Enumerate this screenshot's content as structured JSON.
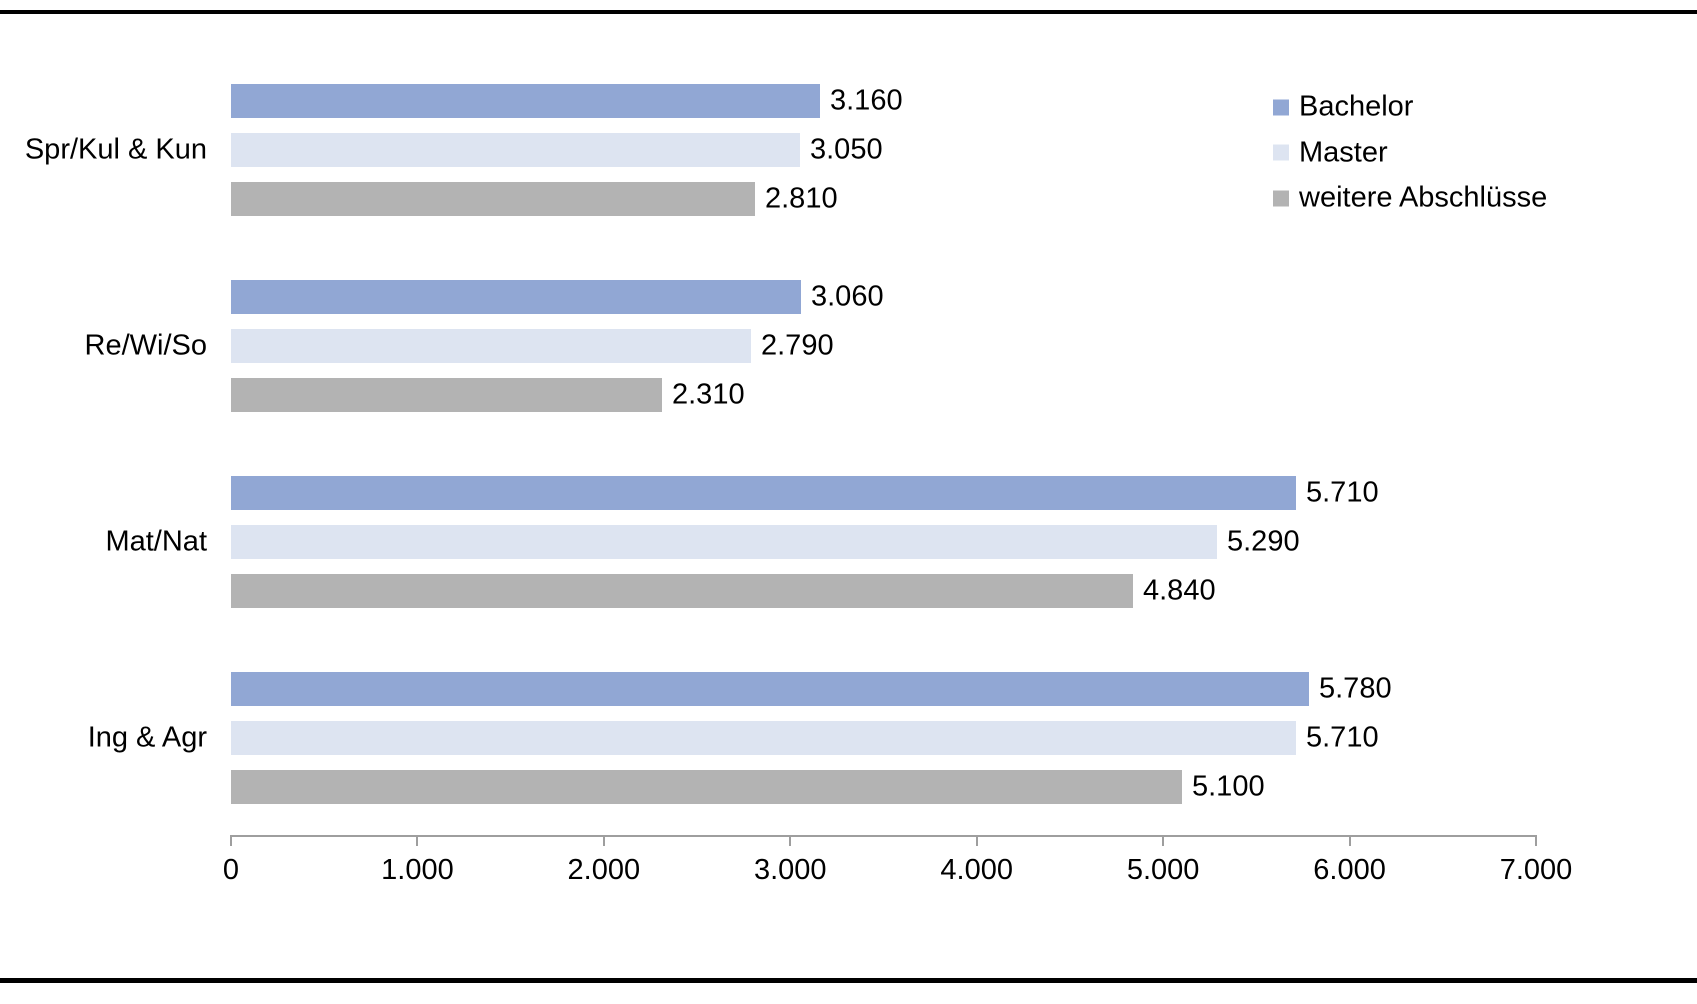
{
  "colors": {
    "axis": "#9e9e9e",
    "text": "#000000",
    "frame_rules": "#000000",
    "background": "#ffffff"
  },
  "chart_data": {
    "type": "bar",
    "orientation": "horizontal",
    "categories": [
      "Spr/Kul & Kun",
      "Re/Wi/So",
      "Mat/Nat",
      "Ing & Agr"
    ],
    "series": [
      {
        "name": "Bachelor",
        "color": "#91A7D4",
        "values": [
          3160,
          3060,
          5710,
          5780
        ],
        "labels": [
          "3.160",
          "3.060",
          "5.710",
          "5.780"
        ]
      },
      {
        "name": "Master",
        "color": "#DDE4F1",
        "values": [
          3050,
          2790,
          5290,
          5710
        ],
        "labels": [
          "3.050",
          "2.790",
          "5.290",
          "5.710"
        ]
      },
      {
        "name": "weitere Abschlüsse",
        "color": "#B3B3B3",
        "values": [
          2810,
          2310,
          4840,
          5100
        ],
        "labels": [
          "2.810",
          "2.310",
          "4.840",
          "5.100"
        ]
      }
    ],
    "xlim": [
      0,
      7000
    ],
    "x_ticks": [
      0,
      1000,
      2000,
      3000,
      4000,
      5000,
      6000,
      7000
    ],
    "x_tick_labels": [
      "0",
      "1.000",
      "2.000",
      "3.000",
      "4.000",
      "5.000",
      "6.000",
      "7.000"
    ],
    "grid": false,
    "legend_position": "top-right",
    "number_format": "thousands-dot"
  }
}
